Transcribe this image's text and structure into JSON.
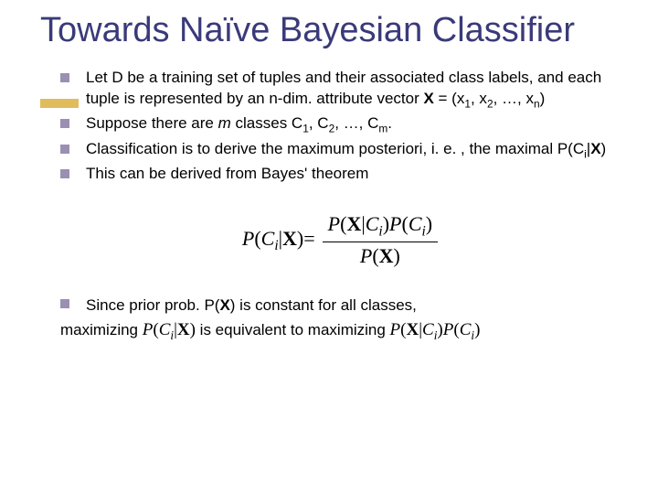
{
  "title": "Towards Naïve Bayesian Classifier",
  "title_color": "#3a3a7a",
  "title_fontsize": 38,
  "accent_color": "#d4a017",
  "bullet_color": "#9b8fb3",
  "body_fontsize": 17,
  "bullets": [
    {
      "prefix": "Let D be a training set of tuples and their associated class labels, and each tuple is represented by an n-dim. attribute vector ",
      "bold_var": "X",
      "suffix_a": " = (x",
      "sub1": "1",
      "mid1": ", x",
      "sub2": "2",
      "mid2": ", …, x",
      "sub3": "n",
      "end": ")"
    },
    {
      "prefix": "Suppose there are ",
      "italic_m": "m",
      "mid": " classes C",
      "sub1": "1",
      "mid2": ", C",
      "sub2": "2",
      "mid3": ", …, C",
      "sub3": "m",
      "end": "."
    },
    {
      "prefix": "Classification is to derive the maximum posteriori, i. e. , the maximal P(C",
      "sub_i": "i",
      "mid": "|",
      "bold_x": "X",
      "end": ")"
    },
    {
      "text": "This can be derived from Bayes' theorem"
    }
  ],
  "formula": {
    "lhs_p": "P",
    "lhs_open": "(",
    "lhs_c": "C",
    "lhs_i": "i",
    "lhs_bar": "|",
    "lhs_x": "X",
    "lhs_close": ")=",
    "num_p1": "P",
    "num_open1": "(",
    "num_x": "X",
    "num_bar": "|",
    "num_c": "C",
    "num_i": "i",
    "num_close1": ")",
    "num_p2": "P",
    "num_open2": "(",
    "num_c2": "C",
    "num_i2": "i",
    "num_close2": ")",
    "den_p": "P",
    "den_open": "(",
    "den_x": "X",
    "den_close": ")"
  },
  "closing": {
    "line1_a": "Since prior prob. P(",
    "line1_x": "X",
    "line1_b": ") is constant for all classes,",
    "line2_a": "maximizing ",
    "expr1_p": "P",
    "expr1_open": "(",
    "expr1_c": "C",
    "expr1_i": "i",
    "expr1_bar": "|",
    "expr1_x": "X",
    "expr1_close": ")",
    "line2_b": " is equivalent to maximizing ",
    "expr2_p1": "P",
    "expr2_open1": "(",
    "expr2_x": "X",
    "expr2_bar": "|",
    "expr2_c": "C",
    "expr2_i": "i",
    "expr2_close1": ")",
    "expr2_p2": "P",
    "expr2_open2": "(",
    "expr2_c2": "C",
    "expr2_i2": "i",
    "expr2_close2": ")"
  }
}
